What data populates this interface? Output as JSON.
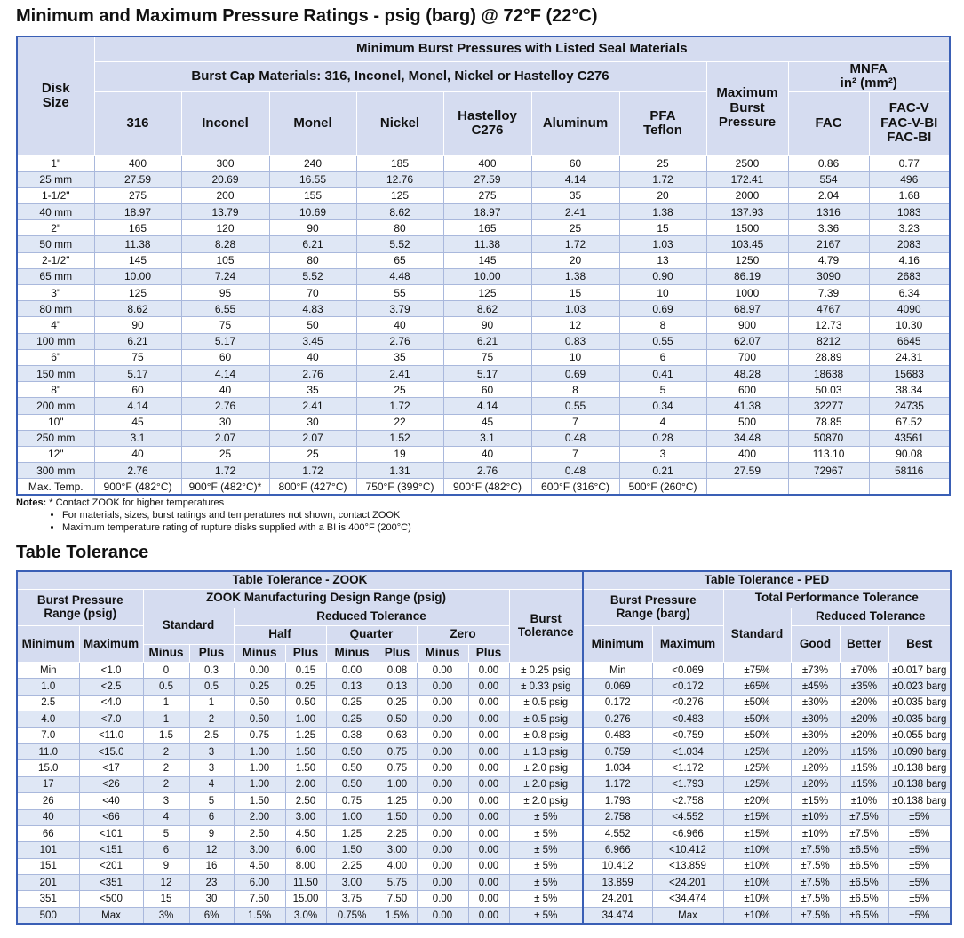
{
  "title": "Minimum and Maximum Pressure Ratings - psig (barg) @ 72°F (22°C)",
  "pressure_table": {
    "header": {
      "disk_size": "Disk\nSize",
      "group": "Minimum Burst Pressures with Listed Seal Materials",
      "burst_cap": "Burst Cap Materials: 316, Inconel, Monel, Nickel or Hastelloy C276",
      "max_burst": "Maximum\nBurst\nPressure",
      "mnfa": "MNFA\nin² (mm²)",
      "columns": [
        "316",
        "Inconel",
        "Monel",
        "Nickel",
        "Hastelloy\nC276",
        "Aluminum",
        "PFA\nTeflon",
        "FAC",
        "FAC-V\nFAC-V-BI\nFAC-BI"
      ]
    },
    "rows": [
      [
        "1\"",
        "400",
        "300",
        "240",
        "185",
        "400",
        "60",
        "25",
        "2500",
        "0.86",
        "0.77"
      ],
      [
        "25 mm",
        "27.59",
        "20.69",
        "16.55",
        "12.76",
        "27.59",
        "4.14",
        "1.72",
        "172.41",
        "554",
        "496"
      ],
      [
        "1-1/2\"",
        "275",
        "200",
        "155",
        "125",
        "275",
        "35",
        "20",
        "2000",
        "2.04",
        "1.68"
      ],
      [
        "40 mm",
        "18.97",
        "13.79",
        "10.69",
        "8.62",
        "18.97",
        "2.41",
        "1.38",
        "137.93",
        "1316",
        "1083"
      ],
      [
        "2\"",
        "165",
        "120",
        "90",
        "80",
        "165",
        "25",
        "15",
        "1500",
        "3.36",
        "3.23"
      ],
      [
        "50 mm",
        "11.38",
        "8.28",
        "6.21",
        "5.52",
        "11.38",
        "1.72",
        "1.03",
        "103.45",
        "2167",
        "2083"
      ],
      [
        "2-1/2\"",
        "145",
        "105",
        "80",
        "65",
        "145",
        "20",
        "13",
        "1250",
        "4.79",
        "4.16"
      ],
      [
        "65 mm",
        "10.00",
        "7.24",
        "5.52",
        "4.48",
        "10.00",
        "1.38",
        "0.90",
        "86.19",
        "3090",
        "2683"
      ],
      [
        "3\"",
        "125",
        "95",
        "70",
        "55",
        "125",
        "15",
        "10",
        "1000",
        "7.39",
        "6.34"
      ],
      [
        "80 mm",
        "8.62",
        "6.55",
        "4.83",
        "3.79",
        "8.62",
        "1.03",
        "0.69",
        "68.97",
        "4767",
        "4090"
      ],
      [
        "4\"",
        "90",
        "75",
        "50",
        "40",
        "90",
        "12",
        "8",
        "900",
        "12.73",
        "10.30"
      ],
      [
        "100 mm",
        "6.21",
        "5.17",
        "3.45",
        "2.76",
        "6.21",
        "0.83",
        "0.55",
        "62.07",
        "8212",
        "6645"
      ],
      [
        "6\"",
        "75",
        "60",
        "40",
        "35",
        "75",
        "10",
        "6",
        "700",
        "28.89",
        "24.31"
      ],
      [
        "150 mm",
        "5.17",
        "4.14",
        "2.76",
        "2.41",
        "5.17",
        "0.69",
        "0.41",
        "48.28",
        "18638",
        "15683"
      ],
      [
        "8\"",
        "60",
        "40",
        "35",
        "25",
        "60",
        "8",
        "5",
        "600",
        "50.03",
        "38.34"
      ],
      [
        "200 mm",
        "4.14",
        "2.76",
        "2.41",
        "1.72",
        "4.14",
        "0.55",
        "0.34",
        "41.38",
        "32277",
        "24735"
      ],
      [
        "10\"",
        "45",
        "30",
        "30",
        "22",
        "45",
        "7",
        "4",
        "500",
        "78.85",
        "67.52"
      ],
      [
        "250 mm",
        "3.1",
        "2.07",
        "2.07",
        "1.52",
        "3.1",
        "0.48",
        "0.28",
        "34.48",
        "50870",
        "43561"
      ],
      [
        "12\"",
        "40",
        "25",
        "25",
        "19",
        "40",
        "7",
        "3",
        "400",
        "113.10",
        "90.08"
      ],
      [
        "300 mm",
        "2.76",
        "1.72",
        "1.72",
        "1.31",
        "2.76",
        "0.48",
        "0.21",
        "27.59",
        "72967",
        "58116"
      ]
    ],
    "max_temp": [
      "Max. Temp.",
      "900°F (482°C)",
      "900°F (482°C)*",
      "800°F (427°C)",
      "750°F (399°C)",
      "900°F (482°C)",
      "600°F (316°C)",
      "500°F (260°C)"
    ]
  },
  "notes": {
    "label": "Notes:",
    "star": "* Contact ZOOK for higher temperatures",
    "bullets": [
      "For materials, sizes, burst ratings and temperatures not shown, contact ZOOK",
      "Maximum temperature rating of rupture disks supplied with a BI is 400°F (200°C)"
    ]
  },
  "tolerance_title": "Table Tolerance",
  "tolerance_table": {
    "header": {
      "zook_title": "Table Tolerance - ZOOK",
      "ped_title": "Table Tolerance - PED",
      "bpr_psig": "Burst Pressure\nRange (psig)",
      "zook_range": "ZOOK Manufacturing Design Range (psig)",
      "burst_tol": "Burst\nTolerance",
      "bpr_barg": "Burst Pressure\nRange (barg)",
      "tpt": "Total Performance Tolerance",
      "standard": "Standard",
      "reduced": "Reduced Tolerance",
      "ped_standard": "Standard",
      "ped_reduced": "Reduced Tolerance",
      "minimum": "Minimum",
      "maximum": "Maximum",
      "half": "Half",
      "quarter": "Quarter",
      "zero": "Zero",
      "ped_minimum": "Minimum",
      "ped_maximum": "Maximum",
      "good": "Good",
      "better": "Better",
      "best": "Best",
      "minus_plus": [
        "Minus",
        "Plus",
        "Minus",
        "Plus",
        "Minus",
        "Plus",
        "Minus",
        "Plus"
      ]
    },
    "rows": [
      [
        "Min",
        "<1.0",
        "0",
        "0.3",
        "0.00",
        "0.15",
        "0.00",
        "0.08",
        "0.00",
        "0.00",
        "± 0.25 psig",
        "Min",
        "<0.069",
        "±75%",
        "±73%",
        "±70%",
        "±0.017 barg"
      ],
      [
        "1.0",
        "<2.5",
        "0.5",
        "0.5",
        "0.25",
        "0.25",
        "0.13",
        "0.13",
        "0.00",
        "0.00",
        "± 0.33 psig",
        "0.069",
        "<0.172",
        "±65%",
        "±45%",
        "±35%",
        "±0.023 barg"
      ],
      [
        "2.5",
        "<4.0",
        "1",
        "1",
        "0.50",
        "0.50",
        "0.25",
        "0.25",
        "0.00",
        "0.00",
        "± 0.5 psig",
        "0.172",
        "<0.276",
        "±50%",
        "±30%",
        "±20%",
        "±0.035 barg"
      ],
      [
        "4.0",
        "<7.0",
        "1",
        "2",
        "0.50",
        "1.00",
        "0.25",
        "0.50",
        "0.00",
        "0.00",
        "± 0.5 psig",
        "0.276",
        "<0.483",
        "±50%",
        "±30%",
        "±20%",
        "±0.035 barg"
      ],
      [
        "7.0",
        "<11.0",
        "1.5",
        "2.5",
        "0.75",
        "1.25",
        "0.38",
        "0.63",
        "0.00",
        "0.00",
        "± 0.8 psig",
        "0.483",
        "<0.759",
        "±50%",
        "±30%",
        "±20%",
        "±0.055 barg"
      ],
      [
        "11.0",
        "<15.0",
        "2",
        "3",
        "1.00",
        "1.50",
        "0.50",
        "0.75",
        "0.00",
        "0.00",
        "± 1.3 psig",
        "0.759",
        "<1.034",
        "±25%",
        "±20%",
        "±15%",
        "±0.090 barg"
      ],
      [
        "15.0",
        "<17",
        "2",
        "3",
        "1.00",
        "1.50",
        "0.50",
        "0.75",
        "0.00",
        "0.00",
        "± 2.0 psig",
        "1.034",
        "<1.172",
        "±25%",
        "±20%",
        "±15%",
        "±0.138 barg"
      ],
      [
        "17",
        "<26",
        "2",
        "4",
        "1.00",
        "2.00",
        "0.50",
        "1.00",
        "0.00",
        "0.00",
        "± 2.0 psig",
        "1.172",
        "<1.793",
        "±25%",
        "±20%",
        "±15%",
        "±0.138 barg"
      ],
      [
        "26",
        "<40",
        "3",
        "5",
        "1.50",
        "2.50",
        "0.75",
        "1.25",
        "0.00",
        "0.00",
        "± 2.0 psig",
        "1.793",
        "<2.758",
        "±20%",
        "±15%",
        "±10%",
        "±0.138 barg"
      ],
      [
        "40",
        "<66",
        "4",
        "6",
        "2.00",
        "3.00",
        "1.00",
        "1.50",
        "0.00",
        "0.00",
        "± 5%",
        "2.758",
        "<4.552",
        "±15%",
        "±10%",
        "±7.5%",
        "±5%"
      ],
      [
        "66",
        "<101",
        "5",
        "9",
        "2.50",
        "4.50",
        "1.25",
        "2.25",
        "0.00",
        "0.00",
        "± 5%",
        "4.552",
        "<6.966",
        "±15%",
        "±10%",
        "±7.5%",
        "±5%"
      ],
      [
        "101",
        "<151",
        "6",
        "12",
        "3.00",
        "6.00",
        "1.50",
        "3.00",
        "0.00",
        "0.00",
        "± 5%",
        "6.966",
        "<10.412",
        "±10%",
        "±7.5%",
        "±6.5%",
        "±5%"
      ],
      [
        "151",
        "<201",
        "9",
        "16",
        "4.50",
        "8.00",
        "2.25",
        "4.00",
        "0.00",
        "0.00",
        "± 5%",
        "10.412",
        "<13.859",
        "±10%",
        "±7.5%",
        "±6.5%",
        "±5%"
      ],
      [
        "201",
        "<351",
        "12",
        "23",
        "6.00",
        "11.50",
        "3.00",
        "5.75",
        "0.00",
        "0.00",
        "± 5%",
        "13.859",
        "<24.201",
        "±10%",
        "±7.5%",
        "±6.5%",
        "±5%"
      ],
      [
        "351",
        "<500",
        "15",
        "30",
        "7.50",
        "15.00",
        "3.75",
        "7.50",
        "0.00",
        "0.00",
        "± 5%",
        "24.201",
        "<34.474",
        "±10%",
        "±7.5%",
        "±6.5%",
        "±5%"
      ],
      [
        "500",
        "Max",
        "3%",
        "6%",
        "1.5%",
        "3.0%",
        "0.75%",
        "1.5%",
        "0.00",
        "0.00",
        "± 5%",
        "34.474",
        "Max",
        "±10%",
        "±7.5%",
        "±6.5%",
        "±5%"
      ]
    ]
  }
}
